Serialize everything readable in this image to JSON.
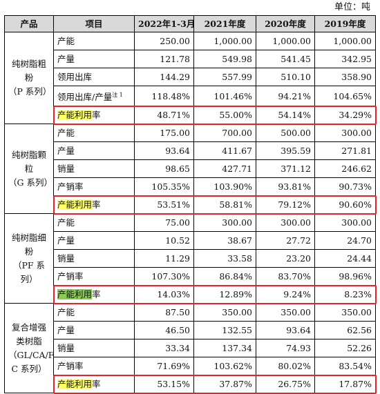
{
  "unit_label": "单位：吨",
  "headers": [
    "产品",
    "项目",
    "2022年1-3月",
    "2021年度",
    "2020年度",
    "2019年度"
  ],
  "groups": [
    {
      "name": "纯树脂粗粉（P系列）",
      "name_lines": [
        "纯树脂粗",
        "粉",
        "（P 系列）"
      ],
      "rows": [
        {
          "item": "产能",
          "values": [
            "250.00",
            "1,000.00",
            "1,000.00",
            "1,000.00"
          ]
        },
        {
          "item": "产量",
          "values": [
            "121.78",
            "549.98",
            "541.45",
            "342.95"
          ]
        },
        {
          "item": "领用出库",
          "values": [
            "144.29",
            "557.99",
            "510.10",
            "358.90"
          ]
        },
        {
          "item": "领用出库/产量",
          "note": "注 1",
          "values": [
            "118.48%",
            "101.46%",
            "94.21%",
            "104.65%"
          ]
        },
        {
          "item_hl": "产能利用",
          "item_rest": "率",
          "values": [
            "48.71%",
            "55.00%",
            "54.14%",
            "34.29%"
          ]
        }
      ]
    },
    {
      "name": "纯树脂颗粒（G系列）",
      "name_lines": [
        "纯树脂颗",
        "粒",
        "（G 系列）"
      ],
      "rows": [
        {
          "item": "产能",
          "values": [
            "175.00",
            "700.00",
            "500.00",
            "300.00"
          ]
        },
        {
          "item": "产量",
          "values": [
            "93.64",
            "411.67",
            "395.59",
            "271.81"
          ]
        },
        {
          "item": "销量",
          "values": [
            "98.65",
            "427.71",
            "371.12",
            "246.62"
          ]
        },
        {
          "item": "产销率",
          "values": [
            "105.35%",
            "103.90%",
            "93.81%",
            "90.73%"
          ]
        },
        {
          "item_hl": "产能利用",
          "item_rest": "率",
          "values": [
            "53.51%",
            "58.81%",
            "79.12%",
            "90.60%"
          ]
        }
      ]
    },
    {
      "name": "纯树脂细粉（PF系列）",
      "name_lines": [
        "纯树脂细",
        "粉",
        "（PF 系列）"
      ],
      "rows": [
        {
          "item": "产能",
          "values": [
            "75.00",
            "300.00",
            "300.00",
            "300.00"
          ]
        },
        {
          "item": "产量",
          "values": [
            "10.52",
            "38.67",
            "27.72",
            "24.70"
          ]
        },
        {
          "item": "销量",
          "values": [
            "11.29",
            "33.58",
            "23.20",
            "24.44"
          ]
        },
        {
          "item": "产销率",
          "values": [
            "107.30%",
            "86.84%",
            "83.70%",
            "98.96%"
          ]
        },
        {
          "item_hl": "产能利用",
          "item_rest": "率",
          "values": [
            "14.03%",
            "12.89%",
            "9.24%",
            "8.23%"
          ]
        }
      ]
    },
    {
      "name": "复合增强类树脂（GL/CA/FC系列）",
      "name_lines": [
        "复合增强",
        "类树脂",
        "（GL/CA/F",
        "C 系列）"
      ],
      "rows": [
        {
          "item": "产能",
          "values": [
            "87.50",
            "350.00",
            "350.00",
            "350.00"
          ]
        },
        {
          "item": "产量",
          "values": [
            "46.50",
            "132.55",
            "93.64",
            "62.56"
          ]
        },
        {
          "item": "销量",
          "values": [
            "33.34",
            "137.34",
            "74.93",
            "52.26"
          ]
        },
        {
          "item": "产销率",
          "values": [
            "71.69%",
            "103.62%",
            "80.02%",
            "83.54%"
          ]
        },
        {
          "item_hl": "产能利用",
          "item_rest": "率",
          "values": [
            "53.15%",
            "37.87%",
            "26.75%",
            "17.87%"
          ]
        }
      ]
    }
  ],
  "colors": {
    "highlight": "#ffff66",
    "highlight_alt": "#88cc55",
    "box": "#e8202a",
    "header_bg": "#d9d9d9"
  }
}
